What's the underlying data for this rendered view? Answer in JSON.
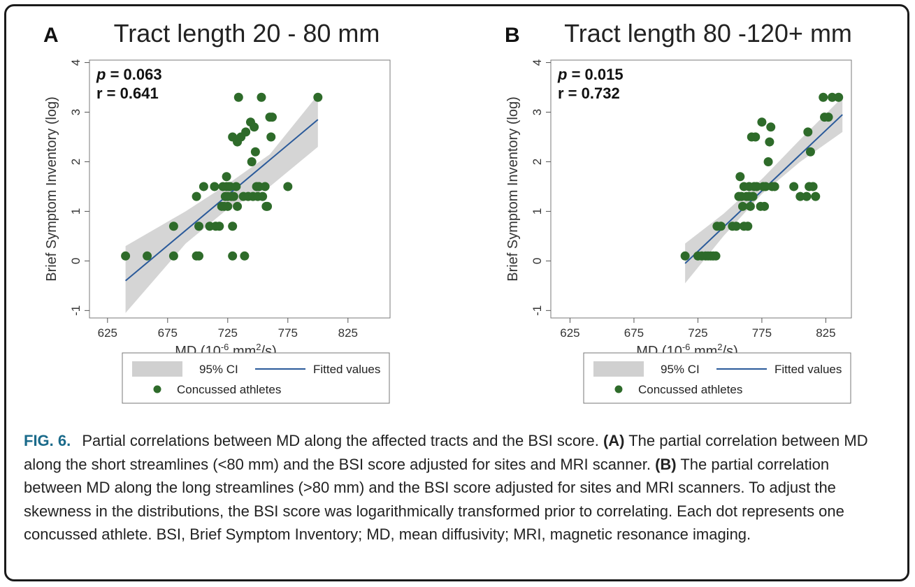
{
  "chart_data": [
    {
      "type": "scatter",
      "panel_letter": "A",
      "title": "Tract length 20 - 80 mm",
      "annotations": [
        {
          "label": "p",
          "text": " = 0.063"
        },
        {
          "label": "",
          "text": "r = 0.641"
        }
      ],
      "xlabel": "MD (10",
      "xlabel_sup": "-6",
      "xlabel_tail": " mm",
      "xlabel_sup2": "2",
      "xlabel_end": "/s)",
      "ylabel": "Brief Symptom Inventory (log)",
      "xlim": [
        610,
        860
      ],
      "ylim": [
        -1.15,
        4.05
      ],
      "xticks": [
        625,
        675,
        725,
        775,
        825
      ],
      "yticks": [
        -1,
        0,
        1,
        2,
        3,
        4
      ],
      "fit": {
        "x": [
          640,
          800
        ],
        "y": [
          -0.4,
          2.85
        ]
      },
      "ci_band": {
        "x": [
          640,
          690,
          725,
          760,
          800
        ],
        "lower": [
          -1.05,
          0.35,
          1.05,
          1.5,
          2.3
        ],
        "upper": [
          0.3,
          1.0,
          1.55,
          2.15,
          3.35
        ]
      },
      "series": [
        {
          "name": "Concussed athletes",
          "points": [
            [
              640,
              0.1
            ],
            [
              658,
              0.1
            ],
            [
              680,
              0.7
            ],
            [
              680,
              0.1
            ],
            [
              699,
              1.3
            ],
            [
              699,
              0.1
            ],
            [
              701,
              0.1
            ],
            [
              701,
              0.7
            ],
            [
              705,
              1.5
            ],
            [
              710,
              0.7
            ],
            [
              714,
              1.5
            ],
            [
              715,
              0.7
            ],
            [
              718,
              0.7
            ],
            [
              720,
              1.1
            ],
            [
              721,
              1.5
            ],
            [
              722,
              1.1
            ],
            [
              723,
              1.3
            ],
            [
              724,
              1.7
            ],
            [
              724,
              1.5
            ],
            [
              725,
              1.3
            ],
            [
              725,
              1.1
            ],
            [
              726,
              1.5
            ],
            [
              727,
              1.5
            ],
            [
              728,
              1.3
            ],
            [
              729,
              0.7
            ],
            [
              729,
              2.5
            ],
            [
              729,
              0.1
            ],
            [
              730,
              1.3
            ],
            [
              732,
              1.5
            ],
            [
              733,
              1.1
            ],
            [
              733,
              2.4
            ],
            [
              734,
              3.3
            ],
            [
              736,
              2.5
            ],
            [
              738,
              1.3
            ],
            [
              739,
              0.1
            ],
            [
              740,
              2.6
            ],
            [
              742,
              1.3
            ],
            [
              744,
              2.8
            ],
            [
              745,
              2.0
            ],
            [
              746,
              1.3
            ],
            [
              747,
              2.7
            ],
            [
              748,
              2.2
            ],
            [
              749,
              1.5
            ],
            [
              750,
              1.3
            ],
            [
              751,
              1.5
            ],
            [
              753,
              3.3
            ],
            [
              754,
              1.3
            ],
            [
              756,
              1.5
            ],
            [
              757,
              1.1
            ],
            [
              758,
              1.1
            ],
            [
              760,
              2.9
            ],
            [
              761,
              2.5
            ],
            [
              762,
              2.9
            ],
            [
              775,
              1.5
            ],
            [
              800,
              3.3
            ]
          ]
        }
      ],
      "legend": {
        "ci": "95% CI",
        "fit": "Fitted values",
        "points": "Concussed athletes",
        "placement": "bottom"
      }
    },
    {
      "type": "scatter",
      "panel_letter": "B",
      "title": "Tract length 80 -120+ mm",
      "annotations": [
        {
          "label": "p",
          "text": " = 0.015"
        },
        {
          "label": "",
          "text": "r = 0.732"
        }
      ],
      "xlabel": "MD (10",
      "xlabel_sup": "-6",
      "xlabel_tail": " mm",
      "xlabel_sup2": "2",
      "xlabel_end": "/s)",
      "ylabel": "Brief Symptom Inventory (log)",
      "xlim": [
        610,
        845
      ],
      "ylim": [
        -1.15,
        4.05
      ],
      "xticks": [
        625,
        675,
        725,
        775,
        825
      ],
      "yticks": [
        -1,
        0,
        1,
        2,
        3,
        4
      ],
      "fit": {
        "x": [
          715,
          838
        ],
        "y": [
          -0.05,
          2.95
        ]
      },
      "ci_band": {
        "x": [
          715,
          745,
          775,
          805,
          838
        ],
        "lower": [
          -0.45,
          0.5,
          1.35,
          2.0,
          2.6
        ],
        "upper": [
          0.35,
          0.95,
          1.65,
          2.45,
          3.3
        ]
      },
      "series": [
        {
          "name": "Concussed athletes",
          "points": [
            [
              715,
              0.1
            ],
            [
              725,
              0.1
            ],
            [
              728,
              0.1
            ],
            [
              731,
              0.1
            ],
            [
              733,
              0.1
            ],
            [
              735,
              0.1
            ],
            [
              737,
              0.1
            ],
            [
              739,
              0.1
            ],
            [
              740,
              0.7
            ],
            [
              743,
              0.7
            ],
            [
              752,
              0.7
            ],
            [
              755,
              0.7
            ],
            [
              757,
              1.3
            ],
            [
              758,
              1.7
            ],
            [
              759,
              1.3
            ],
            [
              760,
              1.1
            ],
            [
              761,
              1.5
            ],
            [
              761,
              0.7
            ],
            [
              763,
              1.3
            ],
            [
              764,
              0.7
            ],
            [
              765,
              1.3
            ],
            [
              765,
              1.5
            ],
            [
              766,
              1.1
            ],
            [
              767,
              2.5
            ],
            [
              768,
              1.3
            ],
            [
              769,
              1.5
            ],
            [
              770,
              2.5
            ],
            [
              771,
              1.5
            ],
            [
              774,
              1.1
            ],
            [
              775,
              2.8
            ],
            [
              776,
              1.5
            ],
            [
              777,
              1.1
            ],
            [
              778,
              1.5
            ],
            [
              780,
              2.0
            ],
            [
              781,
              2.4
            ],
            [
              782,
              2.7
            ],
            [
              783,
              1.5
            ],
            [
              785,
              1.5
            ],
            [
              800,
              1.5
            ],
            [
              805,
              1.3
            ],
            [
              810,
              1.3
            ],
            [
              811,
              2.6
            ],
            [
              812,
              1.5
            ],
            [
              813,
              2.2
            ],
            [
              815,
              1.5
            ],
            [
              817,
              1.3
            ],
            [
              823,
              3.3
            ],
            [
              824,
              2.9
            ],
            [
              827,
              2.9
            ],
            [
              830,
              3.3
            ],
            [
              835,
              3.3
            ]
          ]
        }
      ],
      "legend": {
        "ci": "95% CI",
        "fit": "Fitted values",
        "points": "Concussed athletes",
        "placement": "bottom"
      }
    }
  ],
  "caption": {
    "fig_label": "FIG. 6.",
    "intro": "Partial correlations between MD along the affected tracts and the BSI score.",
    "a_label": "(A)",
    "a_text": "The partial correlation between MD along the short streamlines (<80 mm) and the BSI score adjusted for sites and MRI scanner.",
    "b_label": "(B)",
    "b_text": "The partial correlation between MD along the long streamlines (>80 mm) and the BSI score adjusted for sites and MRI scanners. To adjust the skewness in the distributions, the BSI score was logarithmically transformed prior to correlating. Each dot represents one concussed athlete. BSI, Brief Symptom Inventory; MD, mean diffusivity; MRI, magnetic resonance imaging."
  },
  "colors": {
    "fit_line": "#2a5a9a",
    "ci_band": "#d0d0d0",
    "points": "#2e6b2a",
    "frame": "#1a1a1a",
    "fig_label": "#1a6a8a"
  }
}
